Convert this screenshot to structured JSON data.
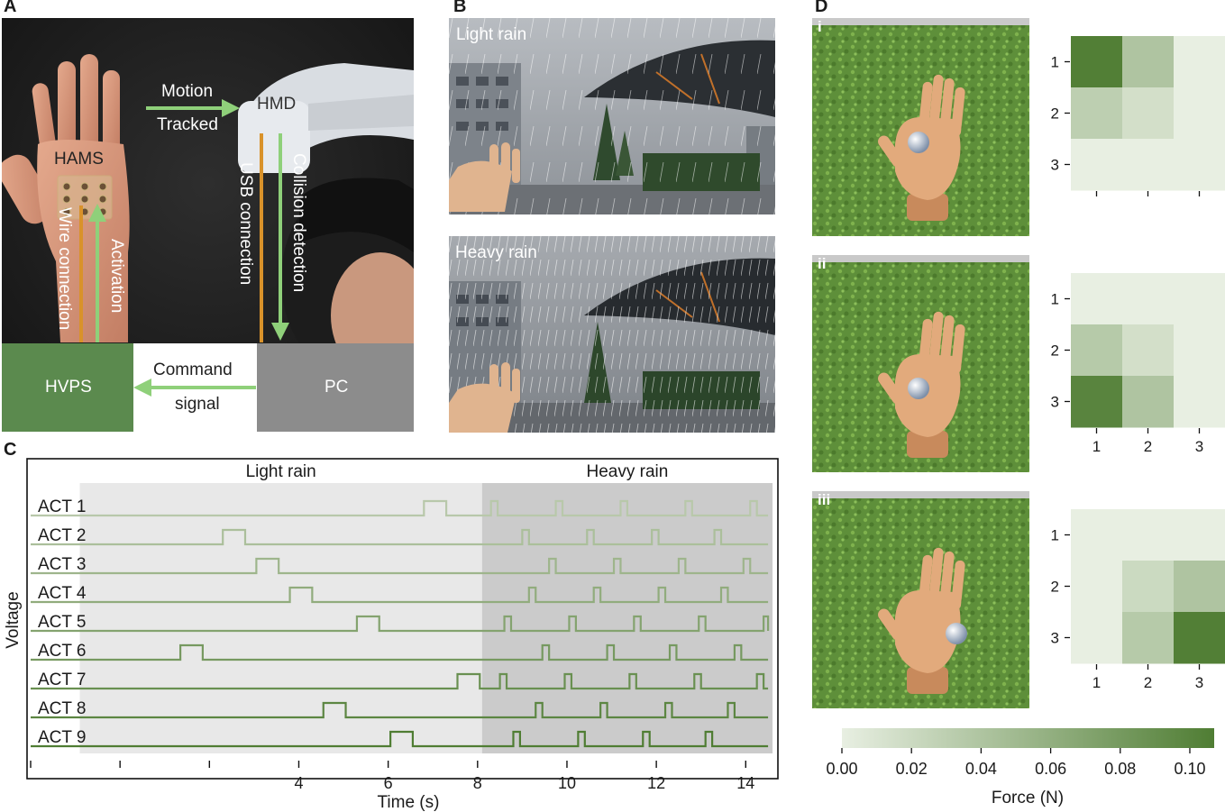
{
  "panel_labels": {
    "a": "A",
    "b": "B",
    "c": "C",
    "d": "D"
  },
  "panel_a": {
    "motion": "Motion",
    "tracked": "Tracked",
    "hmd": "HMD",
    "hams": "HAMS",
    "wire_connection": "Wire connection",
    "activation": "Activation",
    "usb_connection": "USB connection",
    "collision_detection": "Collision detection",
    "hvps": "HVPS",
    "pc": "PC",
    "command": "Command",
    "signal": "signal",
    "colors": {
      "green_box": "#5b8a4e",
      "grey_box": "#8c8c8c",
      "arrow_green": "#8fd07a",
      "arrow_orange": "#d9922a"
    }
  },
  "panel_b": {
    "light_rain": "Light rain",
    "heavy_rain": "Heavy rain"
  },
  "panel_d": {
    "sub_labels": [
      "i",
      "ii",
      "iii"
    ],
    "colorbar_label": "Force (N)",
    "colorbar_ticks": [
      "0.00",
      "0.02",
      "0.04",
      "0.06",
      "0.08",
      "0.10"
    ],
    "colors": {
      "low": "#e8efe2",
      "high": "#4f7d33"
    }
  },
  "chart_data": [
    {
      "type": "line",
      "ylabel": "Voltage",
      "xlabel": "Time (s)",
      "xlim": [
        -2,
        14.7
      ],
      "xticks": [
        -2,
        0,
        2,
        4,
        6,
        8,
        10,
        12,
        14
      ],
      "xtick_labels": [
        "",
        "",
        "",
        "4",
        "6",
        "8",
        "10",
        "12",
        "14"
      ],
      "regions": [
        {
          "label": "Light rain",
          "start": -0.9,
          "end": 8.1
        },
        {
          "label": "Heavy rain",
          "start": 8.1,
          "end": 14.6
        }
      ],
      "trace_start": -2,
      "trace_end": 14.5,
      "series": [
        {
          "name": "ACT 1",
          "pulses": [
            [
              6.8,
              7.3
            ],
            [
              8.3,
              8.45
            ],
            [
              9.75,
              9.9
            ],
            [
              11.2,
              11.35
            ],
            [
              12.65,
              12.8
            ],
            [
              14.1,
              14.25
            ]
          ]
        },
        {
          "name": "ACT 2",
          "pulses": [
            [
              2.3,
              2.8
            ],
            [
              9.0,
              9.15
            ],
            [
              10.45,
              10.6
            ],
            [
              11.9,
              12.05
            ],
            [
              13.3,
              13.45
            ]
          ]
        },
        {
          "name": "ACT 3",
          "pulses": [
            [
              3.05,
              3.55
            ],
            [
              9.6,
              9.75
            ],
            [
              11.05,
              11.2
            ],
            [
              12.5,
              12.65
            ],
            [
              13.95,
              14.1
            ]
          ]
        },
        {
          "name": "ACT 4",
          "pulses": [
            [
              3.8,
              4.3
            ],
            [
              9.15,
              9.3
            ],
            [
              10.6,
              10.75
            ],
            [
              12.05,
              12.2
            ],
            [
              13.45,
              13.6
            ]
          ]
        },
        {
          "name": "ACT 5",
          "pulses": [
            [
              5.3,
              5.8
            ],
            [
              8.6,
              8.75
            ],
            [
              10.05,
              10.2
            ],
            [
              11.5,
              11.65
            ],
            [
              12.95,
              13.1
            ],
            [
              14.4,
              14.5
            ]
          ]
        },
        {
          "name": "ACT 6",
          "pulses": [
            [
              1.35,
              1.85
            ],
            [
              9.45,
              9.6
            ],
            [
              10.9,
              11.05
            ],
            [
              12.3,
              12.45
            ],
            [
              13.75,
              13.9
            ]
          ]
        },
        {
          "name": "ACT 7",
          "pulses": [
            [
              7.55,
              8.05
            ],
            [
              8.5,
              8.65
            ],
            [
              9.95,
              10.1
            ],
            [
              11.4,
              11.55
            ],
            [
              12.85,
              13.0
            ],
            [
              14.25,
              14.4
            ]
          ]
        },
        {
          "name": "ACT 8",
          "pulses": [
            [
              4.55,
              5.05
            ],
            [
              9.3,
              9.45
            ],
            [
              10.75,
              10.9
            ],
            [
              12.2,
              12.35
            ],
            [
              13.6,
              13.75
            ]
          ]
        },
        {
          "name": "ACT 9",
          "pulses": [
            [
              6.05,
              6.55
            ],
            [
              8.8,
              8.95
            ],
            [
              10.25,
              10.4
            ],
            [
              11.7,
              11.85
            ],
            [
              13.1,
              13.25
            ]
          ]
        }
      ]
    },
    {
      "type": "heatmap",
      "title": "i",
      "x": [
        "1",
        "2",
        "3"
      ],
      "y": [
        "1",
        "2",
        "3"
      ],
      "values": [
        [
          0.105,
          0.04,
          0.0
        ],
        [
          0.03,
          0.015,
          0.0
        ],
        [
          0.0,
          0.0,
          0.0
        ]
      ],
      "zlim": [
        0,
        0.107
      ]
    },
    {
      "type": "heatmap",
      "title": "ii",
      "x": [
        "1",
        "2",
        "3"
      ],
      "y": [
        "1",
        "2",
        "3"
      ],
      "values": [
        [
          0.0,
          0.0,
          0.0
        ],
        [
          0.035,
          0.015,
          0.0
        ],
        [
          0.1,
          0.04,
          0.0
        ]
      ],
      "zlim": [
        0,
        0.107
      ]
    },
    {
      "type": "heatmap",
      "title": "iii",
      "x": [
        "1",
        "2",
        "3"
      ],
      "y": [
        "1",
        "2",
        "3"
      ],
      "values": [
        [
          0.0,
          0.0,
          0.0
        ],
        [
          0.0,
          0.02,
          0.04
        ],
        [
          0.0,
          0.035,
          0.105
        ]
      ],
      "zlim": [
        0,
        0.107
      ]
    }
  ]
}
